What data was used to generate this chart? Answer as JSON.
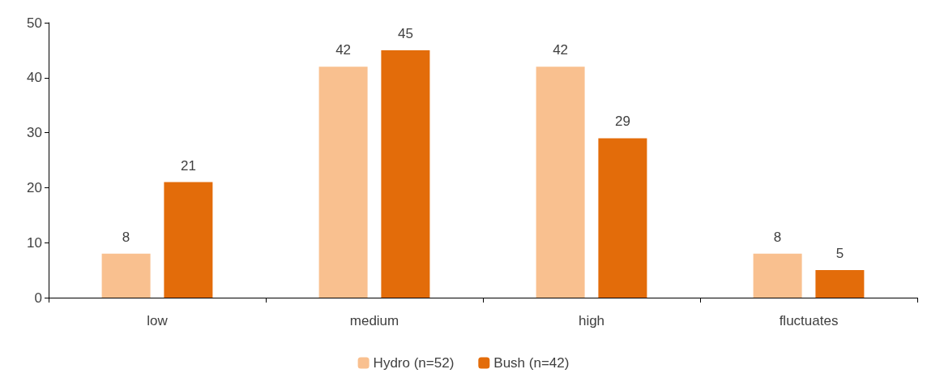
{
  "chart_data": {
    "type": "bar",
    "categories": [
      "low",
      "medium",
      "high",
      "fluctuates"
    ],
    "series": [
      {
        "name": "Hydro (n=52)",
        "color": "#f9c08f",
        "values": [
          8,
          42,
          42,
          8
        ]
      },
      {
        "name": "Bush (n=42)",
        "color": "#e36c0a",
        "values": [
          21,
          45,
          29,
          5
        ]
      }
    ],
    "ylim": [
      0,
      50
    ],
    "yticks": [
      0,
      10,
      20,
      30,
      40,
      50
    ],
    "grid": false,
    "legend": "bottom",
    "data_labels": true
  }
}
